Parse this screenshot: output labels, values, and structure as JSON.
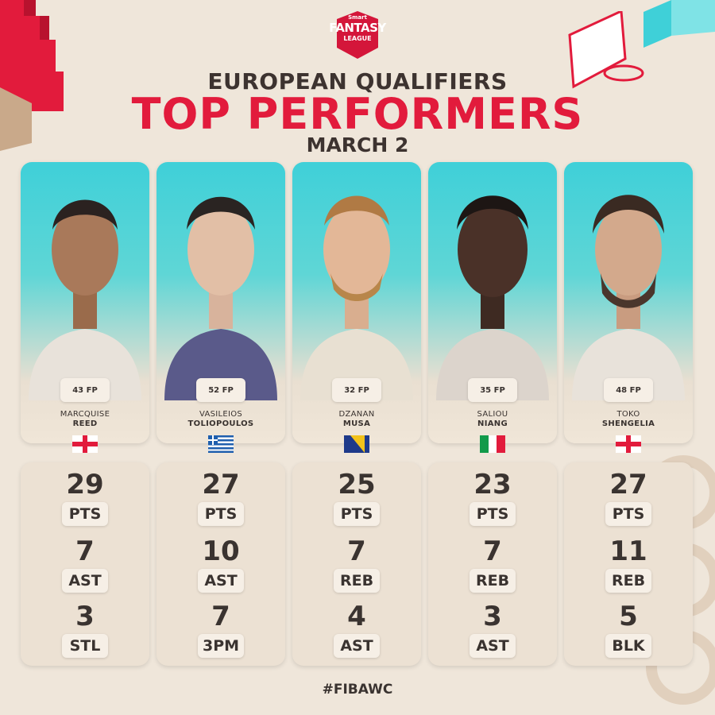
{
  "logo": {
    "line1": "Smart",
    "line2": "FANTASY",
    "line3": "LEAGUE"
  },
  "header": {
    "line1": "EUROPEAN QUALIFIERS",
    "line2": "TOP PERFORMERS",
    "line3": "MARCH 2"
  },
  "colors": {
    "accent_red": "#e21b3c",
    "teal": "#3fd0d8",
    "background": "#efe6da"
  },
  "players": [
    {
      "first_name": "MARCQUISE",
      "last_name": "REED",
      "fp": "43 FP",
      "flag": "georgia-flag",
      "stats": [
        {
          "value": "29",
          "label": "PTS"
        },
        {
          "value": "7",
          "label": "AST"
        },
        {
          "value": "3",
          "label": "STL"
        }
      ]
    },
    {
      "first_name": "VASILEIOS",
      "last_name": "TOLIOPOULOS",
      "fp": "52 FP",
      "flag": "greece-flag",
      "stats": [
        {
          "value": "27",
          "label": "PTS"
        },
        {
          "value": "10",
          "label": "AST"
        },
        {
          "value": "7",
          "label": "3PM"
        }
      ]
    },
    {
      "first_name": "DZANAN",
      "last_name": "MUSA",
      "fp": "32 FP",
      "flag": "bosnia-flag",
      "stats": [
        {
          "value": "25",
          "label": "PTS"
        },
        {
          "value": "7",
          "label": "REB"
        },
        {
          "value": "4",
          "label": "AST"
        }
      ]
    },
    {
      "first_name": "SALIOU",
      "last_name": "NIANG",
      "fp": "35 FP",
      "flag": "italy-flag",
      "stats": [
        {
          "value": "23",
          "label": "PTS"
        },
        {
          "value": "7",
          "label": "REB"
        },
        {
          "value": "3",
          "label": "AST"
        }
      ]
    },
    {
      "first_name": "TOKO",
      "last_name": "SHENGELIA",
      "fp": "48 FP",
      "flag": "georgia-flag",
      "stats": [
        {
          "value": "27",
          "label": "PTS"
        },
        {
          "value": "11",
          "label": "REB"
        },
        {
          "value": "5",
          "label": "BLK"
        }
      ]
    }
  ],
  "footer": {
    "hashtag": "#FIBAWC"
  }
}
